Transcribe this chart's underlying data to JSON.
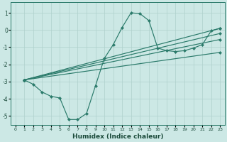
{
  "xlabel": "Humidex (Indice chaleur)",
  "bg_color": "#cce8e5",
  "grid_color": "#afd0cc",
  "line_color": "#2a7a6a",
  "xlim": [
    -0.5,
    23.5
  ],
  "ylim": [
    -5.5,
    1.6
  ],
  "yticks": [
    1,
    0,
    -1,
    -2,
    -3,
    -4,
    -5
  ],
  "xticks": [
    0,
    1,
    2,
    3,
    4,
    5,
    6,
    7,
    8,
    9,
    10,
    11,
    12,
    13,
    14,
    15,
    16,
    17,
    18,
    19,
    20,
    21,
    22,
    23
  ],
  "line1_x": [
    1,
    2,
    3,
    4,
    5,
    6,
    7,
    8,
    9,
    10,
    11,
    12,
    13,
    14,
    15,
    16,
    17,
    18,
    19,
    20,
    21,
    22,
    23
  ],
  "line1_y": [
    -2.9,
    -3.15,
    -3.6,
    -3.85,
    -3.95,
    -5.2,
    -5.2,
    -4.85,
    -3.25,
    -1.65,
    -0.85,
    0.15,
    1.0,
    0.95,
    0.55,
    -1.05,
    -1.2,
    -1.25,
    -1.2,
    -1.05,
    -0.85,
    -0.05,
    0.1
  ],
  "line2_x": [
    1,
    23
  ],
  "line2_y": [
    -2.9,
    0.1
  ],
  "line3_x": [
    1,
    23
  ],
  "line3_y": [
    -2.9,
    -0.2
  ],
  "line4_x": [
    1,
    23
  ],
  "line4_y": [
    -2.9,
    -0.55
  ],
  "line5_x": [
    1,
    23
  ],
  "line5_y": [
    -2.9,
    -1.3
  ],
  "marker_style": "D",
  "marker_size": 2.2,
  "linewidth": 0.85
}
